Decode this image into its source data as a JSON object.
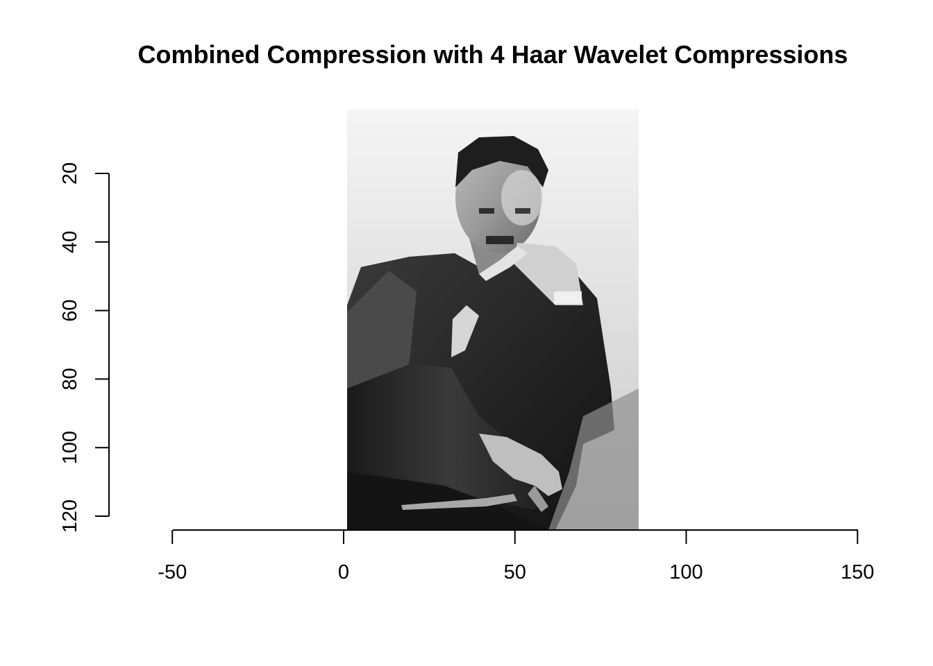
{
  "chart_data": {
    "type": "heatmap",
    "title": "Combined Compression with 4 Haar Wavelet Compressions",
    "xlabel": "",
    "ylabel": "",
    "x_ticks": [
      -50,
      0,
      50,
      100,
      150
    ],
    "y_ticks": [
      20,
      40,
      60,
      80,
      100,
      120
    ],
    "xlim": [
      -50,
      150
    ],
    "ylim": [
      120,
      20
    ],
    "image_extent": {
      "x": [
        1,
        86
      ],
      "y": [
        1,
        124
      ]
    },
    "colormap": "grayscale",
    "content": "compressed grayscale portrait photograph",
    "grid": false
  },
  "colors": {
    "background": "#ffffff",
    "axis": "#000000",
    "image_light": "#f2f2f2",
    "image_dark": "#101010"
  }
}
